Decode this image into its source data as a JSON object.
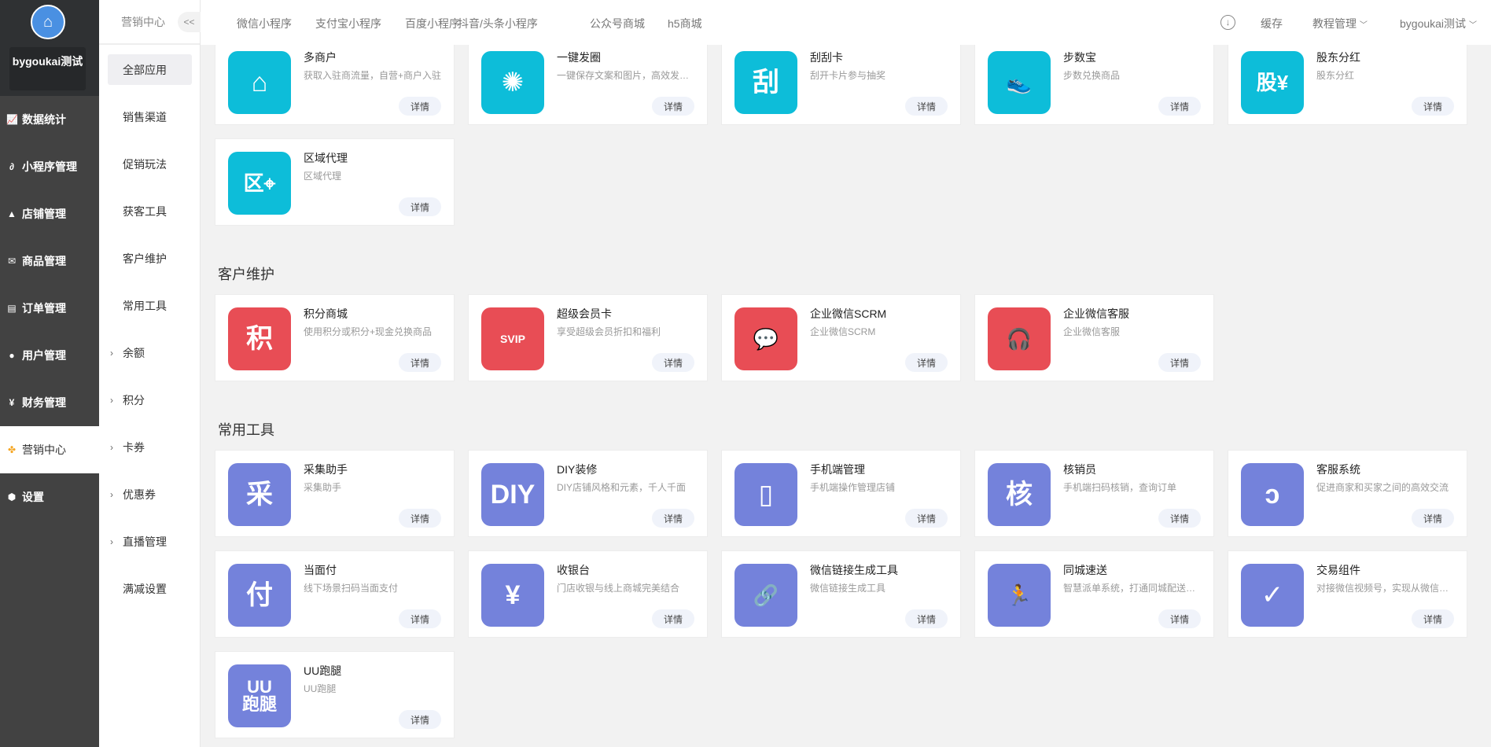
{
  "sidebar": {
    "username": "bygoukai测试",
    "items": [
      {
        "label": "数据统计",
        "icon": "chart-line-icon"
      },
      {
        "label": "小程序管理",
        "icon": "link-icon"
      },
      {
        "label": "店铺管理",
        "icon": "shop-icon"
      },
      {
        "label": "商品管理",
        "icon": "mail-icon"
      },
      {
        "label": "订单管理",
        "icon": "order-icon"
      },
      {
        "label": "用户管理",
        "icon": "user-icon"
      },
      {
        "label": "财务管理",
        "icon": "finance-icon"
      },
      {
        "label": "营销中心",
        "icon": "marketing-icon",
        "active": true
      },
      {
        "label": "设置",
        "icon": "settings-icon"
      }
    ]
  },
  "subnav": {
    "title": "营销中心",
    "collapse": "<<",
    "items": [
      {
        "label": "全部应用",
        "active": true
      },
      {
        "label": "销售渠道"
      },
      {
        "label": "促销玩法"
      },
      {
        "label": "获客工具"
      },
      {
        "label": "客户维护"
      },
      {
        "label": "常用工具"
      },
      {
        "label": "余额",
        "expandable": true
      },
      {
        "label": "积分",
        "expandable": true
      },
      {
        "label": "卡券",
        "expandable": true
      },
      {
        "label": "优惠券",
        "expandable": true
      },
      {
        "label": "直播管理",
        "expandable": true
      },
      {
        "label": "满减设置"
      }
    ]
  },
  "header": {
    "tabs": [
      "微信小程序",
      "支付宝小程序",
      "百度小程序",
      "抖音/头条小程序",
      "公众号商城",
      "h5商城"
    ],
    "cache": "缓存",
    "tutorial": "教程管理",
    "user": "bygoukai测试"
  },
  "colors": {
    "cyan": "#0dbdd9",
    "red": "#e84d55",
    "purple": "#7482db"
  },
  "detail_label": "详情",
  "sections": [
    {
      "title": "",
      "color": "cyan",
      "apps": [
        {
          "title": "多商户",
          "desc": "获取入驻商流量，自营+商户入驻",
          "icon": "store-icon",
          "glyph": "⌂"
        },
        {
          "title": "一键发圈",
          "desc": "一键保存文案和图片，高效发…",
          "icon": "aperture-icon",
          "glyph": "✺"
        },
        {
          "title": "刮刮卡",
          "desc": "刮开卡片参与抽奖",
          "icon": "scratch-card-icon",
          "glyph": "刮"
        },
        {
          "title": "步数宝",
          "desc": "步数兑换商品",
          "icon": "shoe-icon",
          "glyph": "👟"
        },
        {
          "title": "股东分红",
          "desc": "股东分红",
          "icon": "shareholder-icon",
          "glyph": "股¥"
        },
        {
          "title": "区域代理",
          "desc": "区域代理",
          "icon": "area-agent-icon",
          "glyph": "区⌖"
        }
      ]
    },
    {
      "title": "客户维护",
      "color": "red",
      "apps": [
        {
          "title": "积分商城",
          "desc": "使用积分或积分+现金兑换商品",
          "icon": "points-icon",
          "glyph": "积"
        },
        {
          "title": "超级会员卡",
          "desc": "享受超级会员折扣和福利",
          "icon": "svip-card-icon",
          "glyph": "SVIP"
        },
        {
          "title": "企业微信SCRM",
          "desc": "企业微信SCRM",
          "icon": "chat-bubble-icon",
          "glyph": "💬"
        },
        {
          "title": "企业微信客服",
          "desc": "企业微信客服",
          "icon": "headset-icon",
          "glyph": "🎧"
        }
      ]
    },
    {
      "title": "常用工具",
      "color": "purple",
      "apps": [
        {
          "title": "采集助手",
          "desc": "采集助手",
          "icon": "collect-icon",
          "glyph": "采"
        },
        {
          "title": "DIY装修",
          "desc": "DIY店铺风格和元素，千人千面",
          "icon": "diy-icon",
          "glyph": "DIY"
        },
        {
          "title": "手机端管理",
          "desc": "手机端操作管理店铺",
          "icon": "mobile-icon",
          "glyph": "▯"
        },
        {
          "title": "核销员",
          "desc": "手机端扫码核销，查询订单",
          "icon": "verifier-icon",
          "glyph": "核"
        },
        {
          "title": "客服系统",
          "desc": "促进商家和买家之间的高效交流",
          "icon": "service-icon",
          "glyph": "ↄ"
        },
        {
          "title": "当面付",
          "desc": "线下场景扫码当面支付",
          "icon": "pay-icon",
          "glyph": "付"
        },
        {
          "title": "收银台",
          "desc": "门店收银与线上商城完美结合",
          "icon": "cashier-icon",
          "glyph": "¥"
        },
        {
          "title": "微信链接生成工具",
          "desc": "微信链接生成工具",
          "icon": "link-plus-icon",
          "glyph": "🔗"
        },
        {
          "title": "同城速送",
          "desc": "智慧派单系统，打通同城配送…",
          "icon": "runner-icon",
          "glyph": "🏃"
        },
        {
          "title": "交易组件",
          "desc": "对接微信视频号，实现从微信…",
          "icon": "trade-component-icon",
          "glyph": "✓"
        },
        {
          "title": "UU跑腿",
          "desc": "UU跑腿",
          "icon": "uu-errand-icon",
          "glyph": "UU跑腿"
        }
      ]
    }
  ]
}
